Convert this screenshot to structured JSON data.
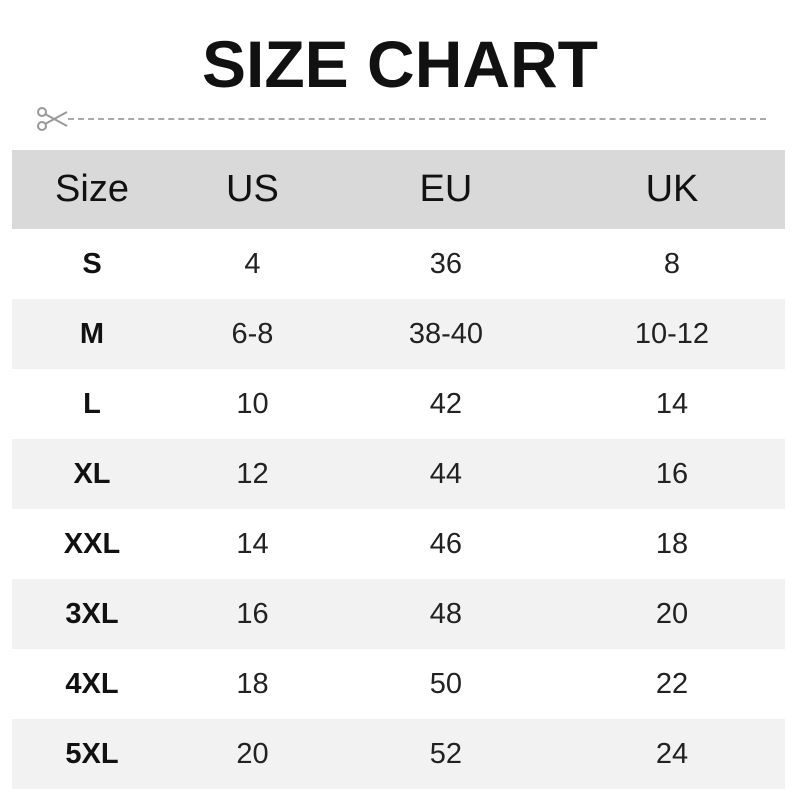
{
  "title": "SIZE CHART",
  "cut_line_icon": "scissors-icon",
  "colors": {
    "header_bg": "#d9d9d9",
    "alt_row_bg": "#f2f2f2"
  },
  "table": {
    "headers": [
      "Size",
      "US",
      "EU",
      "UK"
    ],
    "rows": [
      [
        "S",
        "4",
        "36",
        "8"
      ],
      [
        "M",
        "6-8",
        "38-40",
        "10-12"
      ],
      [
        "L",
        "10",
        "42",
        "14"
      ],
      [
        "XL",
        "12",
        "44",
        "16"
      ],
      [
        "XXL",
        "14",
        "46",
        "18"
      ],
      [
        "3XL",
        "16",
        "48",
        "20"
      ],
      [
        "4XL",
        "18",
        "50",
        "22"
      ],
      [
        "5XL",
        "20",
        "52",
        "24"
      ]
    ]
  }
}
